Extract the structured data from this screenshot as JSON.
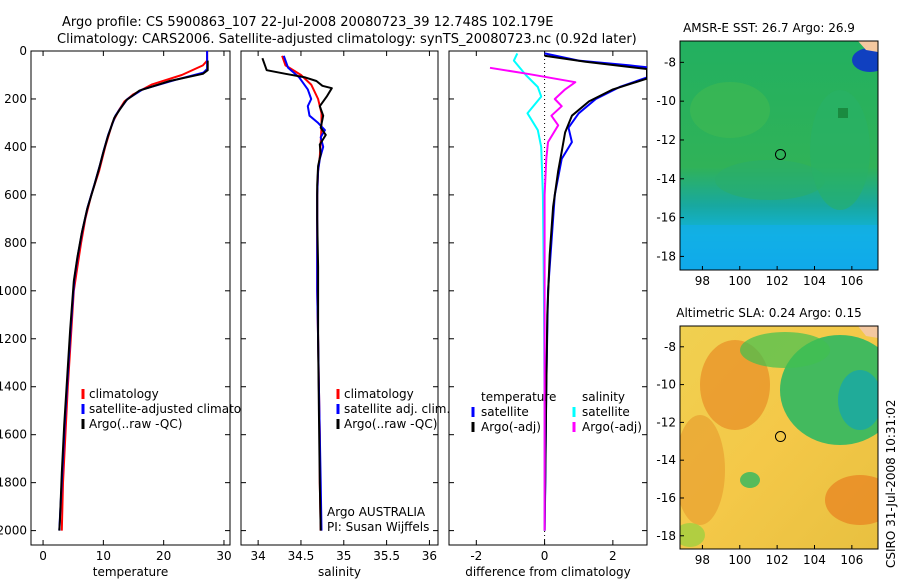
{
  "header": {
    "line1": "Argo profile: CS 5900863_107 22-Jul-2008 20080723_39 12.748S 102.179E",
    "line2": "Climatology: CARS2006. Satellite-adjusted climatology: synTS_20080723.nc (0.92d later)"
  },
  "colors": {
    "red": "#ff0000",
    "blue": "#0000ff",
    "black": "#000000",
    "cyan": "#00ffff",
    "magenta": "#ff00ff"
  },
  "chart_data": [
    {
      "id": "temperature",
      "type": "line",
      "xlabel": "temperature",
      "xlim": [
        -2,
        31
      ],
      "ylim": [
        2060,
        0
      ],
      "xticks": [
        0,
        10,
        20,
        30
      ],
      "yticks": [
        0,
        200,
        400,
        600,
        800,
        1000,
        1200,
        1400,
        1600,
        1800,
        2000
      ],
      "legend": {
        "position": "lower-right",
        "entries": [
          "climatology",
          "satellite-adjusted climatology",
          "Argo(..raw -QC)"
        ]
      },
      "series": [
        {
          "name": "climatology",
          "color": "red",
          "points": [
            [
              27.2,
              0
            ],
            [
              27.2,
              40
            ],
            [
              26.5,
              60
            ],
            [
              23,
              100
            ],
            [
              18,
              140
            ],
            [
              15,
              180
            ],
            [
              13.5,
              210
            ],
            [
              12.5,
              250
            ],
            [
              11.5,
              300
            ],
            [
              10.3,
              400
            ],
            [
              9.3,
              500
            ],
            [
              8,
              600
            ],
            [
              7,
              700
            ],
            [
              6.3,
              800
            ],
            [
              5.7,
              900
            ],
            [
              5.1,
              1000
            ],
            [
              4.6,
              1200
            ],
            [
              4.1,
              1400
            ],
            [
              3.7,
              1600
            ],
            [
              3.3,
              1800
            ],
            [
              3.1,
              2000
            ]
          ]
        },
        {
          "name": "satellite-adjusted climatology",
          "color": "blue",
          "points": [
            [
              27.2,
              0
            ],
            [
              27.2,
              75
            ],
            [
              26.6,
              90
            ],
            [
              22,
              120
            ],
            [
              16.5,
              160
            ],
            [
              14,
              200
            ],
            [
              12.8,
              240
            ],
            [
              12,
              270
            ],
            [
              10.8,
              350
            ],
            [
              10,
              420
            ],
            [
              9.5,
              470
            ],
            [
              8.6,
              550
            ],
            [
              7.4,
              650
            ],
            [
              6.5,
              750
            ],
            [
              5.8,
              850
            ],
            [
              5.2,
              950
            ],
            [
              4.6,
              1150
            ],
            [
              4.1,
              1350
            ],
            [
              3.6,
              1550
            ],
            [
              3.2,
              1750
            ],
            [
              2.8,
              1950
            ],
            [
              2.7,
              2000
            ]
          ]
        },
        {
          "name": "Argo(..raw -QC)",
          "color": "black",
          "points": [
            [
              27.3,
              40
            ],
            [
              27.3,
              80
            ],
            [
              26.5,
              95
            ],
            [
              21,
              125
            ],
            [
              16,
              165
            ],
            [
              13.8,
              205
            ],
            [
              12.7,
              245
            ],
            [
              11.8,
              280
            ],
            [
              10.7,
              360
            ],
            [
              9.9,
              430
            ],
            [
              9.4,
              480
            ],
            [
              8.5,
              560
            ],
            [
              7.3,
              660
            ],
            [
              6.4,
              760
            ],
            [
              5.7,
              860
            ],
            [
              5.1,
              960
            ],
            [
              4.5,
              1160
            ],
            [
              4,
              1360
            ],
            [
              3.5,
              1560
            ],
            [
              3.1,
              1760
            ],
            [
              2.8,
              1960
            ],
            [
              2.7,
              2000
            ]
          ]
        }
      ]
    },
    {
      "id": "salinity",
      "type": "line",
      "xlabel": "salinity",
      "xlim": [
        33.8,
        36.1
      ],
      "ylim": [
        2060,
        0
      ],
      "xticks": [
        34,
        34.5,
        35,
        35.5,
        36
      ],
      "legend": {
        "position": "lower-right",
        "entries": [
          "climatology",
          "satellite adj. clim.",
          "Argo(..raw -QC)"
        ]
      },
      "annotation": [
        "Argo AUSTRALIA",
        "PI: Susan Wijffels"
      ],
      "series": [
        {
          "name": "climatology",
          "color": "red",
          "points": [
            [
              34.28,
              20
            ],
            [
              34.32,
              60
            ],
            [
              34.5,
              100
            ],
            [
              34.62,
              140
            ],
            [
              34.7,
              200
            ],
            [
              34.74,
              260
            ],
            [
              34.74,
              320
            ],
            [
              34.73,
              380
            ],
            [
              34.72,
              440
            ],
            [
              34.7,
              500
            ],
            [
              34.69,
              600
            ],
            [
              34.69,
              800
            ],
            [
              34.69,
              1000
            ],
            [
              34.7,
              1200
            ],
            [
              34.71,
              1400
            ],
            [
              34.72,
              1600
            ],
            [
              34.72,
              1800
            ],
            [
              34.73,
              2000
            ]
          ]
        },
        {
          "name": "satellite adj. clim.",
          "color": "blue",
          "points": [
            [
              34.3,
              20
            ],
            [
              34.35,
              70
            ],
            [
              34.48,
              110
            ],
            [
              34.58,
              160
            ],
            [
              34.62,
              200
            ],
            [
              34.58,
              230
            ],
            [
              34.6,
              270
            ],
            [
              34.7,
              300
            ],
            [
              34.78,
              330
            ],
            [
              34.73,
              360
            ],
            [
              34.76,
              400
            ],
            [
              34.72,
              450
            ],
            [
              34.7,
              500
            ],
            [
              34.69,
              600
            ],
            [
              34.69,
              800
            ],
            [
              34.69,
              1000
            ],
            [
              34.7,
              1200
            ],
            [
              34.71,
              1400
            ],
            [
              34.72,
              1600
            ],
            [
              34.73,
              1800
            ],
            [
              34.74,
              2000
            ]
          ]
        },
        {
          "name": "Argo(..raw -QC)",
          "color": "black",
          "points": [
            [
              34.05,
              30
            ],
            [
              34.1,
              80
            ],
            [
              34.32,
              95
            ],
            [
              34.55,
              110
            ],
            [
              34.68,
              125
            ],
            [
              34.75,
              145
            ],
            [
              34.86,
              155
            ],
            [
              34.8,
              190
            ],
            [
              34.72,
              230
            ],
            [
              34.76,
              270
            ],
            [
              34.73,
              320
            ],
            [
              34.79,
              350
            ],
            [
              34.72,
              390
            ],
            [
              34.73,
              430
            ],
            [
              34.7,
              480
            ],
            [
              34.69,
              560
            ],
            [
              34.69,
              700
            ],
            [
              34.7,
              900
            ],
            [
              34.7,
              1200
            ],
            [
              34.71,
              1500
            ],
            [
              34.72,
              1800
            ],
            [
              34.73,
              2000
            ]
          ]
        }
      ]
    },
    {
      "id": "difference",
      "type": "line",
      "xlabel": "difference from climatology",
      "xlim": [
        -2.8,
        3
      ],
      "ylim": [
        2060,
        0
      ],
      "xticks": [
        -2,
        0,
        2
      ],
      "legend": {
        "position": "lower-right",
        "columns": [
          {
            "header": "temperature",
            "entries": [
              "satellite",
              "Argo(-adj)"
            ]
          },
          {
            "header": "salinity",
            "entries": [
              "satellite",
              "Argo(-adj)"
            ]
          }
        ]
      },
      "series": [
        {
          "name": "temperature satellite",
          "color": "blue",
          "points": [
            [
              0,
              10
            ],
            [
              1,
              40
            ],
            [
              2.5,
              60
            ],
            [
              3,
              68
            ],
            [
              3,
              110
            ],
            [
              2.2,
              150
            ],
            [
              1.5,
              200
            ],
            [
              1,
              260
            ],
            [
              0.7,
              320
            ],
            [
              0.8,
              380
            ],
            [
              0.5,
              450
            ],
            [
              0.3,
              600
            ],
            [
              0.2,
              800
            ],
            [
              0.1,
              1000
            ],
            [
              0.05,
              1400
            ],
            [
              0.02,
              1800
            ],
            [
              0,
              2000
            ]
          ]
        },
        {
          "name": "temperature Argo(-adj)",
          "color": "black",
          "points": [
            [
              0,
              20
            ],
            [
              1.2,
              45
            ],
            [
              3,
              75
            ],
            [
              3,
              115
            ],
            [
              2,
              160
            ],
            [
              1.3,
              210
            ],
            [
              0.8,
              270
            ],
            [
              0.6,
              340
            ],
            [
              0.5,
              420
            ],
            [
              0.4,
              500
            ],
            [
              0.25,
              650
            ],
            [
              0.15,
              850
            ],
            [
              0.08,
              1100
            ],
            [
              0.04,
              1500
            ],
            [
              0,
              2000
            ]
          ]
        },
        {
          "name": "salinity satellite",
          "color": "cyan",
          "points": [
            [
              -0.8,
              10
            ],
            [
              -0.9,
              40
            ],
            [
              -0.55,
              100
            ],
            [
              -0.2,
              150
            ],
            [
              -0.1,
              190
            ],
            [
              -0.5,
              260
            ],
            [
              -0.2,
              330
            ],
            [
              -0.1,
              400
            ],
            [
              -0.05,
              600
            ],
            [
              -0.02,
              1000
            ],
            [
              0,
              1500
            ],
            [
              0,
              2000
            ]
          ]
        },
        {
          "name": "salinity Argo(-adj)",
          "color": "magenta",
          "points": [
            [
              -1.6,
              70
            ],
            [
              -0.5,
              95
            ],
            [
              0.9,
              130
            ],
            [
              0.6,
              160
            ],
            [
              0.3,
              200
            ],
            [
              0.5,
              230
            ],
            [
              0.2,
              270
            ],
            [
              0.4,
              310
            ],
            [
              0.1,
              380
            ],
            [
              0.05,
              450
            ],
            [
              0,
              600
            ],
            [
              0,
              1000
            ],
            [
              0,
              2000
            ]
          ]
        }
      ]
    },
    {
      "id": "sst-map",
      "type": "heatmap",
      "title": "AMSR-E SST: 26.7  Argo: 26.9",
      "xlim": [
        96.8,
        107.4
      ],
      "ylim": [
        -18.7,
        -6.9
      ],
      "xticks": [
        98,
        100,
        102,
        104,
        106
      ],
      "yticks": [
        -8,
        -10,
        -12,
        -14,
        -16,
        -18
      ],
      "argo_location": [
        102.179,
        -12.748
      ]
    },
    {
      "id": "sla-map",
      "type": "heatmap",
      "title": "Altimetric SLA: 0.24  Argo: 0.15",
      "xlim": [
        96.8,
        107.4
      ],
      "ylim": [
        -18.7,
        -6.9
      ],
      "xticks": [
        98,
        100,
        102,
        104,
        106
      ],
      "yticks": [
        -8,
        -10,
        -12,
        -14,
        -16,
        -18
      ],
      "argo_location": [
        102.179,
        -12.748
      ]
    }
  ],
  "footer": {
    "stamp": "CSIRO  31-Jul-2008 10:31:02"
  }
}
